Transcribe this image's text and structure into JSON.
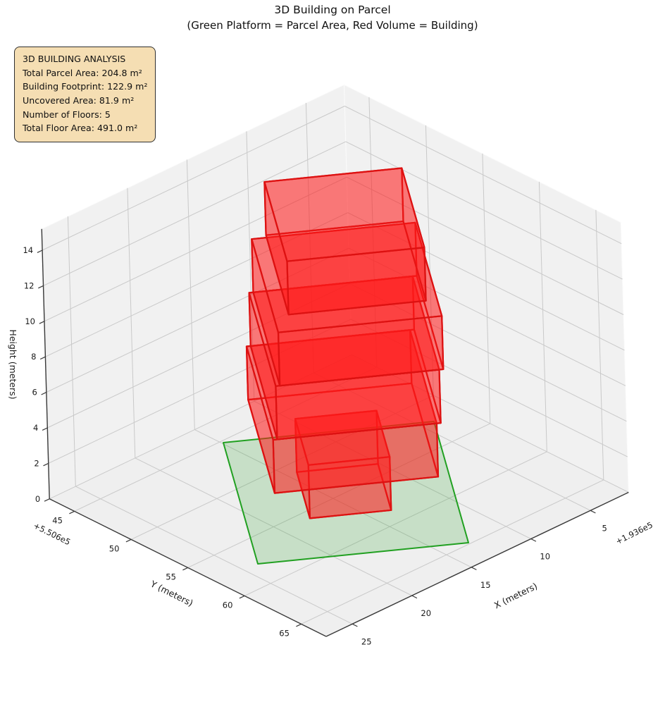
{
  "title": {
    "line1": "3D Building on Parcel",
    "line2": "(Green Platform = Parcel Area, Red Volume = Building)"
  },
  "info_box": {
    "title": "3D BUILDING ANALYSIS",
    "lines": [
      "Total Parcel Area: 204.8 m²",
      "Building Footprint: 122.9 m²",
      "Uncovered Area: 81.9 m²",
      "Number of Floors: 5",
      "Total Floor Area: 491.0 m²"
    ]
  },
  "chart_data": {
    "type": "3d-building-plot",
    "projection": "matplotlib-3d-approx",
    "axes": {
      "x": {
        "label": "X (meters)",
        "ticks": [
          5,
          10,
          15,
          20,
          25
        ],
        "offset_text": "+1.936e5",
        "range": [
          1.8,
          27.2
        ]
      },
      "y": {
        "label": "Y (meters)",
        "ticks": [
          45,
          50,
          55,
          60,
          65
        ],
        "offset_text": "+5.506e5",
        "range": [
          42.8,
          67.2
        ]
      },
      "z": {
        "label": "Height (meters)",
        "ticks": [
          0,
          2,
          4,
          6,
          8,
          10,
          12,
          14
        ],
        "range": [
          0,
          15.2
        ]
      }
    },
    "parcel": {
      "corners_xy": [
        [
          23.87,
          57.68
        ],
        [
          13.01,
          64.85
        ],
        [
          4.03,
          52.38
        ],
        [
          14.89,
          45.21
        ]
      ],
      "z": 0,
      "fill": "rgba(40,160,40,0.20)",
      "edge": "#21a021"
    },
    "building": {
      "fill": "rgba(255,25,25,0.34)",
      "edge": "#dd1111",
      "basis_u": [
        -0.835,
        0.551
      ],
      "basis_v": [
        -0.584,
        -0.811
      ],
      "floors": [
        {
          "name": "floor-1",
          "center": [
            13.9,
            54.81
          ],
          "half_u": 2.51,
          "half_v": 2.93,
          "z0": 0,
          "z1": 3
        },
        {
          "name": "floor-2",
          "center": [
            13.9,
            54.87
          ],
          "half_u": 5.05,
          "half_v": 5.92,
          "z0": 3,
          "z1": 6
        },
        {
          "name": "floor-3",
          "center": [
            13.69,
            55.01
          ],
          "half_u": 5.05,
          "half_v": 5.92,
          "z0": 6,
          "z1": 9
        },
        {
          "name": "floor-4",
          "center": [
            13.48,
            55.15
          ],
          "half_u": 5.05,
          "half_v": 5.92,
          "z0": 9,
          "z1": 12
        },
        {
          "name": "floor-5",
          "center": [
            12.69,
            54.25
          ],
          "half_u": 4.24,
          "half_v": 5.03,
          "z0": 12,
          "z1": 15
        }
      ]
    },
    "stats": {
      "total_parcel_area_m2": 204.8,
      "building_footprint_m2": 122.9,
      "uncovered_area_m2": 81.9,
      "number_of_floors": 5,
      "total_floor_area_m2": 491.0
    }
  },
  "colors": {
    "pane": "#f1f1f1",
    "floor_pane": "#efefef",
    "pane_edge": "#fbfbfb",
    "grid": "#c9c9c9",
    "axis": "#383838",
    "tick_text": "#1a1a1a",
    "info_bg": "#f5deb3",
    "info_border": "#2f2f2f",
    "parcel_green": "#21a021",
    "building_red": "#dd1111"
  }
}
